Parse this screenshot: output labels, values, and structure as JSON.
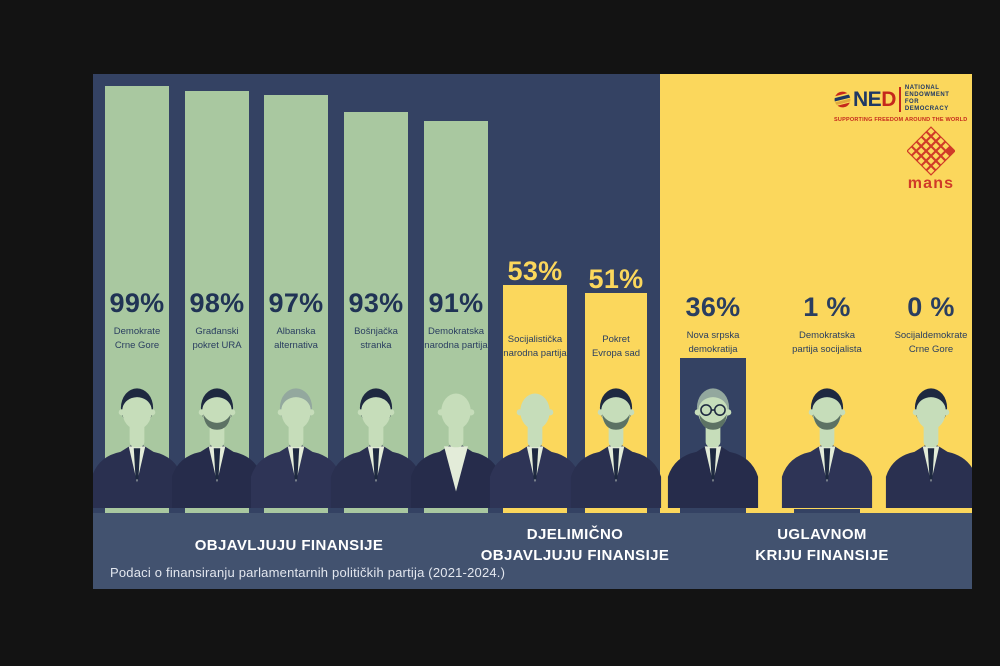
{
  "palette": {
    "outer_background": "#131313",
    "navy": "#344263",
    "yellow": "#FBD75C",
    "band": "#42526F",
    "bar_green": "#A9C8A0",
    "text_dark_navy": "#203355",
    "text_name_navy": "#2A3E60",
    "band_text": "#FFFFFF",
    "caption_text": "#E3E7EF",
    "logo_red": "#C5281C",
    "logo_navy": "#1F3864",
    "mans_red": "#D03A28",
    "portrait_skin": "#C6DDBA",
    "portrait_shirt": "#E3ECD9",
    "portrait_hair_dark": "#1E2940",
    "portrait_hair_gray": "#93A89E",
    "portrait_beard": "#5C7264",
    "portrait_suits": [
      "#2A3050",
      "#262C4B",
      "#2E3456"
    ]
  },
  "logos": {
    "ned": {
      "acronym": "NED",
      "title_lines": [
        "NATIONAL",
        "ENDOWMENT",
        "FOR",
        "DEMOCRACY"
      ],
      "tagline": "SUPPORTING FREEDOM AROUND THE WORLD"
    },
    "mans": {
      "label": "mans"
    }
  },
  "chart_data": {
    "type": "bar",
    "unit": "%",
    "ylim": [
      0,
      100
    ],
    "title": "",
    "caption": "Podaci o finansiranju parlamentarnih političkih partija (2021-2024.)",
    "categories": [
      "Demokrate Crne Gore",
      "Građanski pokret URA",
      "Albanska alternativa",
      "Bošnjačka stranka",
      "Demokratska narodna partija",
      "Socijalistička narodna partija",
      "Pokret Evropa sad",
      "Nova srpska demokratija",
      "Demokratska partija socijalista",
      "Socijaldemokrate Crne Gore"
    ],
    "values": [
      99,
      98,
      97,
      93,
      91,
      53,
      51,
      36,
      1,
      0
    ],
    "sections": [
      {
        "id": "publish",
        "label_lines": [
          "OBJAVLJUJU FINANSIJE"
        ],
        "bg": "#344263",
        "bar_color": "#A9C8A0",
        "value_color": "#203355",
        "name_color": "#2A3E60",
        "value_above_bar": false
      },
      {
        "id": "partial",
        "label_lines": [
          "DJELIMIČNO",
          "OBJAVLJUJU FINANSIJE"
        ],
        "bg": "#344263",
        "bar_color": "#FBD75C",
        "value_color": "#FBD75C",
        "name_color": "#2A3E60",
        "value_above_bar": true
      },
      {
        "id": "hide",
        "label_lines": [
          "UGLAVNOM",
          "KRIJU FINANSIJE"
        ],
        "bg": "#FBD75C",
        "bar_color": "#344263",
        "value_color": "#2A3E60",
        "name_color": "#2A3E60",
        "value_above_bar": false
      }
    ],
    "parties": [
      {
        "name_lines": [
          "Demokrate",
          "Crne Gore"
        ],
        "value": 99,
        "value_label": "99%",
        "section": "publish",
        "portrait": {
          "hair": "dark",
          "beard": false,
          "glasses": false,
          "tie": true
        }
      },
      {
        "name_lines": [
          "Građanski",
          "pokret URA"
        ],
        "value": 98,
        "value_label": "98%",
        "section": "publish",
        "portrait": {
          "hair": "dark",
          "beard": true,
          "glasses": false,
          "tie": true
        }
      },
      {
        "name_lines": [
          "Albanska",
          "alternativa"
        ],
        "value": 97,
        "value_label": "97%",
        "section": "publish",
        "portrait": {
          "hair": "gray",
          "beard": false,
          "glasses": false,
          "tie": true
        }
      },
      {
        "name_lines": [
          "Bošnjačka",
          "stranka"
        ],
        "value": 93,
        "value_label": "93%",
        "section": "publish",
        "portrait": {
          "hair": "dark",
          "beard": false,
          "glasses": false,
          "tie": true
        }
      },
      {
        "name_lines": [
          "Demokratska",
          "narodna partija"
        ],
        "value": 91,
        "value_label": "91%",
        "section": "publish",
        "portrait": {
          "hair": "bald",
          "beard": false,
          "glasses": false,
          "tie": false
        }
      },
      {
        "name_lines": [
          "Socijalistička",
          "narodna partija"
        ],
        "value": 53,
        "value_label": "53%",
        "section": "partial",
        "portrait": {
          "hair": "bald",
          "beard": false,
          "glasses": false,
          "tie": true
        }
      },
      {
        "name_lines": [
          "Pokret",
          "Evropa sad"
        ],
        "value": 51,
        "value_label": "51%",
        "section": "partial",
        "portrait": {
          "hair": "dark",
          "beard": true,
          "glasses": false,
          "tie": true
        }
      },
      {
        "name_lines": [
          "Nova srpska",
          "demokratija"
        ],
        "value": 36,
        "value_label": "36%",
        "section": "hide",
        "portrait": {
          "hair": "gray",
          "beard": true,
          "glasses": true,
          "tie": true
        }
      },
      {
        "name_lines": [
          "Demokratska",
          "partija socijalista"
        ],
        "value": 1,
        "value_label": "1 %",
        "section": "hide",
        "portrait": {
          "hair": "dark",
          "beard": true,
          "glasses": false,
          "tie": true
        }
      },
      {
        "name_lines": [
          "Socijaldemokrate",
          "Crne Gore"
        ],
        "value": 0,
        "value_label": "0 %",
        "section": "hide",
        "portrait": {
          "hair": "dark",
          "beard": false,
          "glasses": false,
          "tie": true
        }
      }
    ]
  }
}
